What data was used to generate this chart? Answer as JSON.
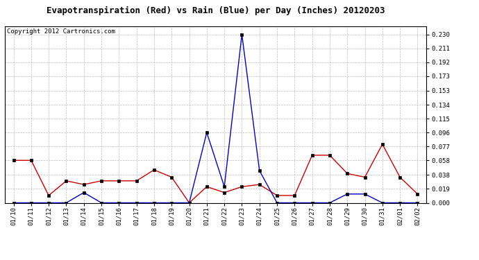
{
  "title": "Evapotranspiration (Red) vs Rain (Blue) per Day (Inches) 20120203",
  "copyright": "Copyright 2012 Cartronics.com",
  "x_labels": [
    "01/10",
    "01/11",
    "01/12",
    "01/13",
    "01/14",
    "01/15",
    "01/16",
    "01/17",
    "01/18",
    "01/19",
    "01/20",
    "01/21",
    "01/22",
    "01/23",
    "01/24",
    "01/25",
    "01/26",
    "01/27",
    "01/28",
    "01/29",
    "01/30",
    "01/31",
    "02/01",
    "02/02"
  ],
  "red_data": [
    0.058,
    0.058,
    0.01,
    0.03,
    0.025,
    0.03,
    0.03,
    0.03,
    0.045,
    0.035,
    0.0,
    0.022,
    0.014,
    0.022,
    0.025,
    0.01,
    0.01,
    0.065,
    0.065,
    0.04,
    0.035,
    0.08,
    0.035,
    0.012
  ],
  "blue_data": [
    0.0,
    0.0,
    0.0,
    0.0,
    0.014,
    0.0,
    0.0,
    0.0,
    0.0,
    0.0,
    0.0,
    0.096,
    0.022,
    0.23,
    0.044,
    0.0,
    0.0,
    0.0,
    0.0,
    0.012,
    0.012,
    0.0,
    0.0,
    0.0
  ],
  "y_ticks": [
    0.0,
    0.019,
    0.038,
    0.058,
    0.077,
    0.096,
    0.115,
    0.134,
    0.153,
    0.173,
    0.192,
    0.211,
    0.23
  ],
  "ylim": [
    0.0,
    0.2415
  ],
  "background_color": "#ffffff",
  "plot_bg_color": "#ffffff",
  "grid_color": "#bbbbbb",
  "red_color": "#cc0000",
  "blue_color": "#0000cc",
  "title_fontsize": 9,
  "copyright_fontsize": 6.5,
  "tick_fontsize": 6.5
}
